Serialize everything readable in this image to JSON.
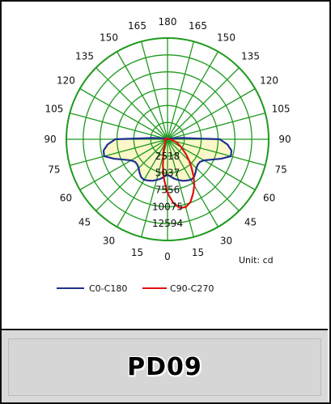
{
  "chart_data": {
    "type": "polar",
    "title": "",
    "unit_label": "Unit: cd",
    "angle_labels_left": [
      "0",
      "15",
      "30",
      "45",
      "60",
      "75",
      "90",
      "105",
      "120",
      "135",
      "150",
      "165",
      "180"
    ],
    "angle_labels_right": [
      "15",
      "30",
      "45",
      "60",
      "75",
      "90",
      "105",
      "120",
      "135",
      "150",
      "165"
    ],
    "radial_ticks": [
      "2518",
      "5037",
      "7556",
      "10075",
      "12594"
    ],
    "rmax": 15113,
    "series": [
      {
        "name": "C0-C180",
        "color": "#1f2f8f",
        "points": [
          [
            -90,
            7800
          ],
          [
            -85,
            9000
          ],
          [
            -80,
            9700
          ],
          [
            -75,
            9800
          ],
          [
            -70,
            8500
          ],
          [
            -65,
            7200
          ],
          [
            -60,
            6300
          ],
          [
            -55,
            5900
          ],
          [
            -50,
            5900
          ],
          [
            -45,
            6100
          ],
          [
            -40,
            6500
          ],
          [
            -35,
            6900
          ],
          [
            -30,
            7000
          ],
          [
            -25,
            6800
          ],
          [
            -20,
            6600
          ],
          [
            -15,
            6300
          ],
          [
            -10,
            6000
          ],
          [
            -5,
            5600
          ],
          [
            0,
            5300
          ],
          [
            5,
            5600
          ],
          [
            10,
            6000
          ],
          [
            15,
            6300
          ],
          [
            20,
            6600
          ],
          [
            25,
            6800
          ],
          [
            30,
            7000
          ],
          [
            35,
            6900
          ],
          [
            40,
            6500
          ],
          [
            45,
            6100
          ],
          [
            50,
            5900
          ],
          [
            55,
            5900
          ],
          [
            60,
            6300
          ],
          [
            65,
            7200
          ],
          [
            70,
            8500
          ],
          [
            75,
            9800
          ],
          [
            80,
            9700
          ],
          [
            85,
            9000
          ],
          [
            90,
            7800
          ],
          [
            95,
            2200
          ],
          [
            105,
            500
          ],
          [
            180,
            0
          ],
          [
            -105,
            500
          ],
          [
            -95,
            2200
          ],
          [
            -90,
            7800
          ]
        ]
      },
      {
        "name": "C90-C270",
        "color": "#e01010",
        "points": [
          [
            -90,
            500
          ],
          [
            -80,
            300
          ],
          [
            -60,
            300
          ],
          [
            -40,
            500
          ],
          [
            -30,
            800
          ],
          [
            -20,
            1700
          ],
          [
            -10,
            4000
          ],
          [
            -5,
            6000
          ],
          [
            0,
            8000
          ],
          [
            5,
            9500
          ],
          [
            10,
            10400
          ],
          [
            15,
            10500
          ],
          [
            20,
            10000
          ],
          [
            25,
            9000
          ],
          [
            30,
            8000
          ],
          [
            35,
            6800
          ],
          [
            40,
            5600
          ],
          [
            45,
            4600
          ],
          [
            50,
            3700
          ],
          [
            60,
            2400
          ],
          [
            70,
            1500
          ],
          [
            80,
            800
          ],
          [
            90,
            400
          ],
          [
            120,
            200
          ],
          [
            180,
            100
          ],
          [
            -120,
            200
          ],
          [
            -90,
            500
          ]
        ]
      }
    ]
  },
  "model_label": "PD09"
}
